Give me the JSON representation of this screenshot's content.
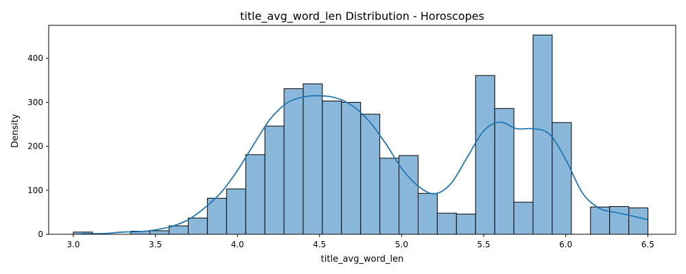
{
  "chart_data": {
    "type": "bar",
    "title": "title_avg_word_len Distribution - Horoscopes",
    "xlabel": "title_avg_word_len",
    "ylabel": "Density",
    "xlim": [
      2.85,
      6.67
    ],
    "ylim": [
      0,
      475
    ],
    "xticks": [
      3.0,
      3.5,
      4.0,
      4.5,
      5.0,
      5.5,
      6.0,
      6.5
    ],
    "yticks": [
      0,
      100,
      200,
      300,
      400
    ],
    "xtick_labels": [
      "3.0",
      "3.5",
      "4.0",
      "4.5",
      "5.0",
      "5.5",
      "6.0",
      "6.5"
    ],
    "ytick_labels": [
      "0",
      "100",
      "200",
      "300",
      "400"
    ],
    "grid": false,
    "bin_start": 3.0,
    "bin_width": 0.1167,
    "values": [
      5,
      0,
      0,
      7,
      8,
      19,
      37,
      82,
      103,
      181,
      246,
      331,
      342,
      303,
      300,
      273,
      173,
      179,
      93,
      48,
      46,
      361,
      286,
      73,
      453,
      254,
      0,
      62,
      63,
      60
    ],
    "bar_color": "#8ab8db",
    "edge_color": "#000000",
    "kde": {
      "color": "#1f77b4",
      "x": [
        3.05,
        3.2,
        3.3,
        3.4,
        3.5,
        3.6,
        3.7,
        3.8,
        3.9,
        4.0,
        4.1,
        4.2,
        4.3,
        4.4,
        4.5,
        4.6,
        4.7,
        4.8,
        4.9,
        5.0,
        5.1,
        5.2,
        5.3,
        5.4,
        5.5,
        5.6,
        5.7,
        5.8,
        5.9,
        6.0,
        6.1,
        6.2,
        6.3,
        6.4,
        6.5
      ],
      "y": [
        1,
        2,
        5,
        6,
        10,
        18,
        33,
        60,
        95,
        145,
        205,
        262,
        298,
        312,
        315,
        310,
        292,
        258,
        208,
        150,
        110,
        92,
        115,
        175,
        235,
        255,
        240,
        240,
        228,
        170,
        95,
        60,
        50,
        42,
        33
      ]
    }
  }
}
